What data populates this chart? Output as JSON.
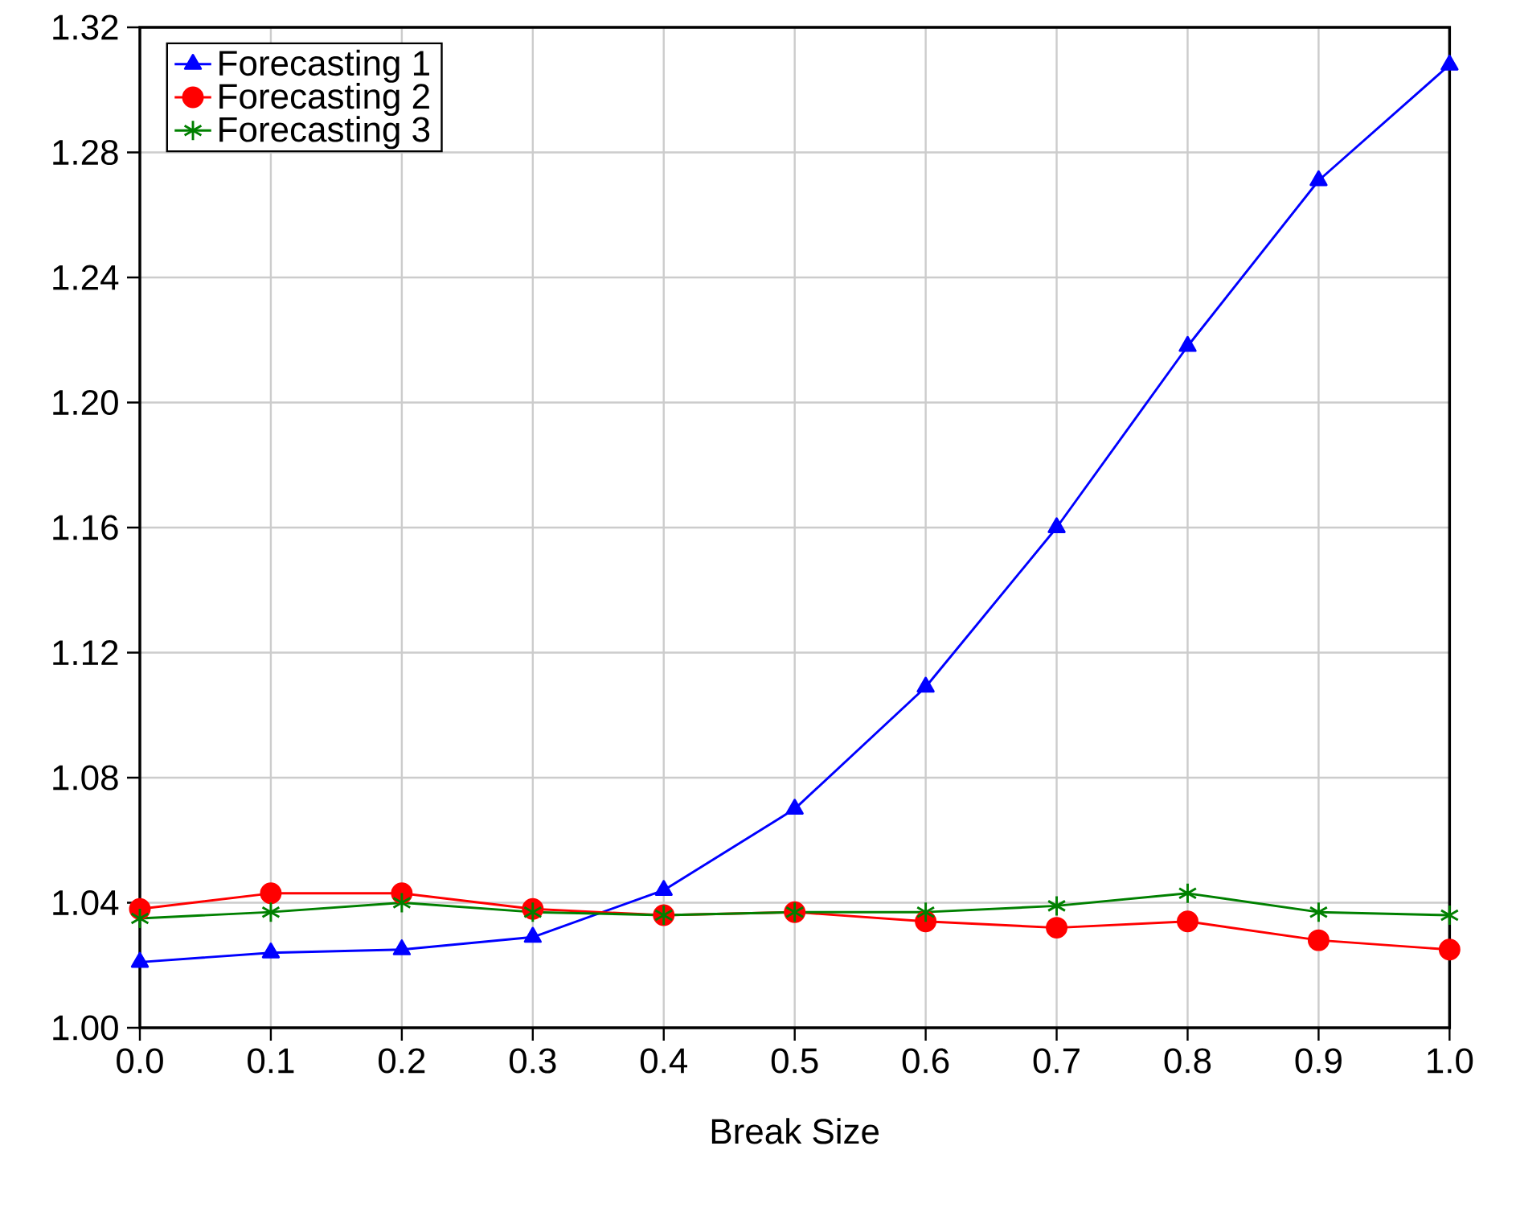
{
  "chart_data": {
    "type": "line",
    "xlabel": "Break Size",
    "x": [
      0.0,
      0.1,
      0.2,
      0.3,
      0.4,
      0.5,
      0.6,
      0.7,
      0.8,
      0.9,
      1.0
    ],
    "series": [
      {
        "name": "Forecasting 1",
        "color": "#0000ff",
        "marker": "triangle",
        "values": [
          1.021,
          1.024,
          1.025,
          1.029,
          1.044,
          1.07,
          1.109,
          1.16,
          1.218,
          1.271,
          1.308
        ]
      },
      {
        "name": "Forecasting 2",
        "color": "#ff0000",
        "marker": "circle",
        "values": [
          1.038,
          1.043,
          1.043,
          1.038,
          1.036,
          1.037,
          1.034,
          1.032,
          1.034,
          1.028,
          1.025
        ]
      },
      {
        "name": "Forecasting 3",
        "color": "#008000",
        "marker": "cross",
        "values": [
          1.035,
          1.037,
          1.04,
          1.037,
          1.036,
          1.037,
          1.037,
          1.039,
          1.043,
          1.037,
          1.036
        ]
      }
    ],
    "xlim": [
      0,
      1
    ],
    "ylim": [
      1.0,
      1.32
    ],
    "xticks": [
      {
        "value": 0,
        "label": "0.0"
      },
      {
        "value": 0.1,
        "label": "0.1"
      },
      {
        "value": 0.2,
        "label": "0.2"
      },
      {
        "value": 0.3,
        "label": "0.3"
      },
      {
        "value": 0.4,
        "label": "0.4"
      },
      {
        "value": 0.5,
        "label": "0.5"
      },
      {
        "value": 0.6,
        "label": "0.6"
      },
      {
        "value": 0.7,
        "label": "0.7"
      },
      {
        "value": 0.8,
        "label": "0.8"
      },
      {
        "value": 0.9,
        "label": "0.9"
      },
      {
        "value": 1,
        "label": "1.0"
      }
    ],
    "yticks": [
      {
        "value": 1.0,
        "label": "1.00"
      },
      {
        "value": 1.04,
        "label": "1.04"
      },
      {
        "value": 1.08,
        "label": "1.08"
      },
      {
        "value": 1.12,
        "label": "1.12"
      },
      {
        "value": 1.16,
        "label": "1.16"
      },
      {
        "value": 1.2,
        "label": "1.20"
      },
      {
        "value": 1.24,
        "label": "1.24"
      },
      {
        "value": 1.28,
        "label": "1.28"
      },
      {
        "value": 1.32,
        "label": "1.32"
      }
    ],
    "grid": true,
    "legend": "top left"
  }
}
